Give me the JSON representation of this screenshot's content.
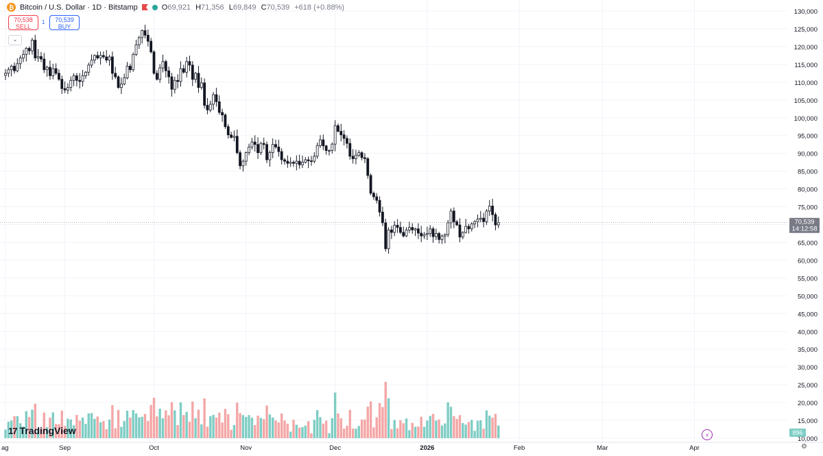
{
  "header": {
    "title": "Bitcoin / U.S. Dollar · 1D · Bitstamp",
    "o_label": "O",
    "o_value": "69,921",
    "h_label": "H",
    "h_value": "71,356",
    "l_label": "L",
    "l_value": "69,849",
    "c_label": "C",
    "c_value": "70,539",
    "change": "+618 (+0.88%)"
  },
  "trade": {
    "sell_price": "70,538",
    "sell_label": "SELL",
    "spread": "1",
    "buy_price": "70,539",
    "buy_label": "BUY"
  },
  "brand": {
    "name": "TradingView"
  },
  "colors": {
    "up": "#ffffff",
    "down": "#131722",
    "up_volume": "#7ecdc4",
    "down_volume": "#f4a6a6",
    "grid": "#f0f3fa",
    "axis_text": "#131722",
    "price_tag": "#787b86"
  },
  "chart_data": {
    "type": "candlestick",
    "title": "Bitcoin / U.S. Dollar · 1D · Bitstamp",
    "price_axis": {
      "min": 10000,
      "max": 130000,
      "ticks": [
        130000,
        125000,
        120000,
        115000,
        110000,
        105000,
        100000,
        95000,
        90000,
        85000,
        80000,
        75000,
        70000,
        65000,
        60000,
        55000,
        50000,
        45000,
        40000,
        35000,
        30000,
        25000,
        20000,
        15000,
        10000
      ],
      "tick_labels": [
        "130,000",
        "125,000",
        "120,000",
        "115,000",
        "110,000",
        "105,000",
        "100,000",
        "95,000",
        "90,000",
        "85,000",
        "80,000",
        "75,000",
        "70,000",
        "65,000",
        "60,000",
        "55,000",
        "50,000",
        "45,000",
        "40,000",
        "35,000",
        "30,000",
        "25,000",
        "20,000",
        "15,000",
        "10,000"
      ]
    },
    "time_axis": {
      "labels": [
        {
          "text": "ag",
          "day": 0
        },
        {
          "text": "Sep",
          "day": 20
        },
        {
          "text": "Oct",
          "day": 50
        },
        {
          "text": "Nov",
          "day": 81
        },
        {
          "text": "Dec",
          "day": 111
        },
        {
          "text": "2026",
          "day": 142
        },
        {
          "text": "Feb",
          "day": 173
        },
        {
          "text": "Mar",
          "day": 201
        },
        {
          "text": "Apr",
          "day": 232
        }
      ]
    },
    "last_price": "70,539",
    "countdown": "14:12:58",
    "last_volume": "896",
    "last_value": 70539,
    "volume_unit_note": "volume plotted against same right axis scale",
    "closes": [
      112500,
      113500,
      114500,
      113200,
      115200,
      116800,
      117800,
      119500,
      118800,
      121800,
      116800,
      117200,
      116500,
      113500,
      114200,
      111800,
      113800,
      112500,
      110800,
      108200,
      107800,
      108500,
      110500,
      111800,
      110500,
      110200,
      111800,
      112800,
      114800,
      116200,
      117500,
      116800,
      117500,
      117100,
      116200,
      117100,
      112500,
      111500,
      108500,
      109500,
      111200,
      114500,
      113500,
      117800,
      120500,
      122500,
      124500,
      123200,
      121500,
      118500,
      112500,
      110800,
      114000,
      115800,
      113200,
      111500,
      108000,
      110500,
      110200,
      113800,
      112800,
      115800,
      114800,
      110800,
      112500,
      108500,
      109800,
      103500,
      102200,
      103800,
      106500,
      104500,
      101500,
      100800,
      97500,
      95200,
      94500,
      94800,
      90200,
      86500,
      87800,
      90200,
      91800,
      93200,
      92500,
      90200,
      92800,
      92500,
      88200,
      90200,
      92500,
      91800,
      90500,
      88200,
      87800,
      87200,
      87500,
      87200,
      87800,
      86800,
      87500,
      88200,
      87900,
      87800,
      89200,
      92200,
      93800,
      92100,
      90800,
      90800,
      92600,
      97800,
      96200,
      95200,
      94200,
      92800,
      89200,
      88500,
      89500,
      90200,
      88800,
      88500,
      83800,
      78800,
      77800,
      76800,
      73500,
      70500,
      63200,
      68500,
      67800,
      69800,
      69200,
      67800,
      66800,
      68500,
      69200,
      68500,
      68800,
      67600,
      66800,
      67200,
      67500,
      68800,
      66600,
      67500,
      65800,
      66800,
      67200,
      70500,
      73800,
      70800,
      69900,
      66500,
      67800,
      69500,
      68800,
      70200,
      70800,
      71500,
      71800,
      70800,
      73800,
      75200,
      72800,
      69900,
      70539
    ]
  }
}
